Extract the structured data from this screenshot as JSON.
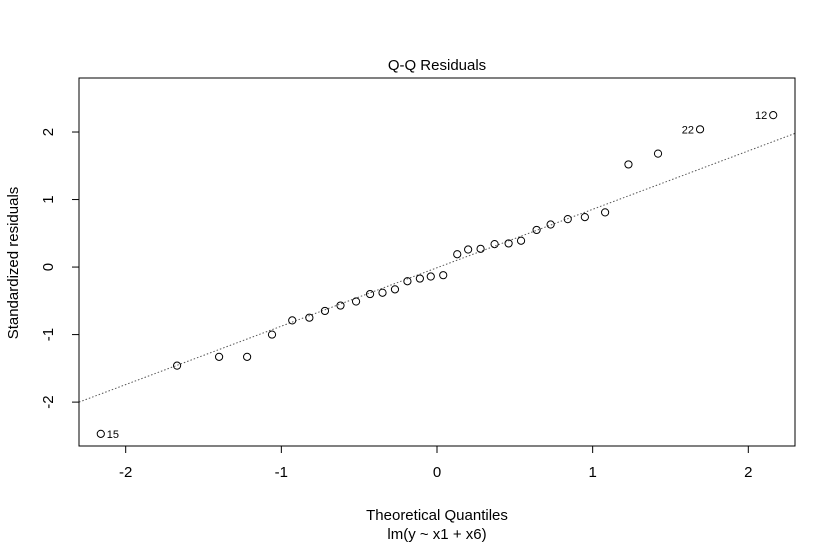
{
  "chart_data": {
    "type": "scatter",
    "title": "Q-Q Residuals",
    "xlabel": "Theoretical Quantiles",
    "subtitle": "lm(y ~ x1 + x6)",
    "ylabel": "Standardized residuals",
    "xlim": [
      -2.3,
      2.3
    ],
    "ylim": [
      -2.65,
      2.8
    ],
    "xticks": [
      -2,
      -1,
      0,
      1,
      2
    ],
    "xtick_labels": [
      "-2",
      "-1",
      "0",
      "1",
      "2"
    ],
    "yticks": [
      -2,
      -1,
      0,
      1,
      2
    ],
    "ytick_labels": [
      "-2",
      "-1",
      "0",
      "1",
      "2"
    ],
    "grid": false,
    "reference_line": {
      "x": [
        -2.3,
        2.3
      ],
      "y": [
        -2.0,
        1.98
      ],
      "style": "dotted"
    },
    "points": [
      {
        "x": -2.16,
        "y": -2.47,
        "label": "15"
      },
      {
        "x": -1.67,
        "y": -1.46
      },
      {
        "x": -1.4,
        "y": -1.33
      },
      {
        "x": -1.22,
        "y": -1.33
      },
      {
        "x": -1.06,
        "y": -1.0
      },
      {
        "x": -0.93,
        "y": -0.79
      },
      {
        "x": -0.82,
        "y": -0.75
      },
      {
        "x": -0.72,
        "y": -0.65
      },
      {
        "x": -0.62,
        "y": -0.57
      },
      {
        "x": -0.52,
        "y": -0.51
      },
      {
        "x": -0.43,
        "y": -0.4
      },
      {
        "x": -0.35,
        "y": -0.38
      },
      {
        "x": -0.27,
        "y": -0.33
      },
      {
        "x": -0.19,
        "y": -0.21
      },
      {
        "x": -0.11,
        "y": -0.17
      },
      {
        "x": -0.04,
        "y": -0.14
      },
      {
        "x": 0.04,
        "y": -0.12
      },
      {
        "x": 0.13,
        "y": 0.19
      },
      {
        "x": 0.2,
        "y": 0.26
      },
      {
        "x": 0.28,
        "y": 0.27
      },
      {
        "x": 0.37,
        "y": 0.34
      },
      {
        "x": 0.46,
        "y": 0.35
      },
      {
        "x": 0.54,
        "y": 0.39
      },
      {
        "x": 0.64,
        "y": 0.55
      },
      {
        "x": 0.73,
        "y": 0.63
      },
      {
        "x": 0.84,
        "y": 0.71
      },
      {
        "x": 0.95,
        "y": 0.74
      },
      {
        "x": 1.08,
        "y": 0.81
      },
      {
        "x": 1.23,
        "y": 1.52
      },
      {
        "x": 1.42,
        "y": 1.68
      },
      {
        "x": 1.69,
        "y": 2.04,
        "label": "22"
      },
      {
        "x": 2.16,
        "y": 2.25,
        "label": "12"
      }
    ]
  }
}
